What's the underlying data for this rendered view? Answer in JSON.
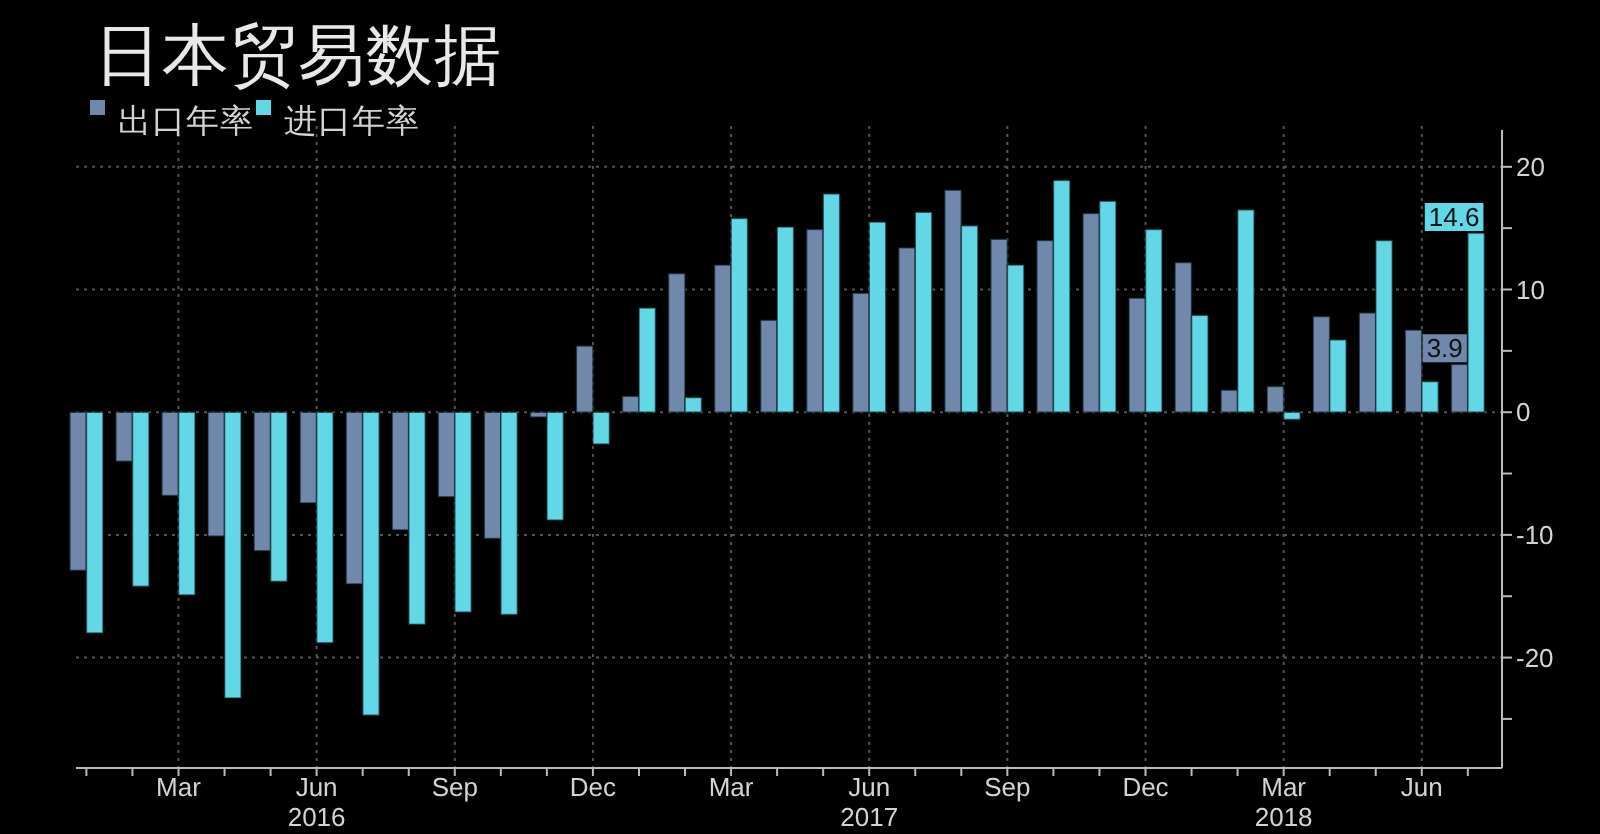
{
  "chart_data": {
    "type": "bar",
    "title": "日本贸易数据",
    "x": [
      "2016-01",
      "2016-02",
      "2016-03",
      "2016-04",
      "2016-05",
      "2016-06",
      "2016-07",
      "2016-08",
      "2016-09",
      "2016-10",
      "2016-11",
      "2016-12",
      "2017-01",
      "2017-02",
      "2017-03",
      "2017-04",
      "2017-05",
      "2017-06",
      "2017-07",
      "2017-08",
      "2017-09",
      "2017-10",
      "2017-11",
      "2017-12",
      "2018-01",
      "2018-02",
      "2018-03",
      "2018-04",
      "2018-05",
      "2018-06",
      "2018-07"
    ],
    "series": [
      {
        "name": "出口年率",
        "color": "#7088aa",
        "values": [
          -12.9,
          -4.0,
          -6.8,
          -10.1,
          -11.3,
          -7.4,
          -14.0,
          -9.6,
          -6.9,
          -10.3,
          -0.4,
          5.4,
          1.3,
          11.3,
          12.0,
          7.5,
          14.9,
          9.7,
          13.4,
          18.1,
          14.1,
          14.0,
          16.2,
          9.3,
          12.2,
          1.8,
          2.1,
          7.8,
          8.1,
          6.7,
          3.9
        ],
        "value_labels": [
          null,
          null,
          null,
          null,
          null,
          null,
          null,
          null,
          null,
          null,
          null,
          null,
          null,
          null,
          null,
          null,
          null,
          null,
          null,
          null,
          null,
          null,
          null,
          null,
          null,
          null,
          null,
          null,
          null,
          null,
          "3.9"
        ]
      },
      {
        "name": "进口年率",
        "color": "#62d8e6",
        "values": [
          -18.0,
          -14.2,
          -14.9,
          -23.3,
          -13.8,
          -18.8,
          -24.7,
          -17.3,
          -16.3,
          -16.5,
          -8.8,
          -2.6,
          8.5,
          1.2,
          15.8,
          15.1,
          17.8,
          15.5,
          16.3,
          15.2,
          12.0,
          18.9,
          17.2,
          14.9,
          7.9,
          16.5,
          -0.6,
          5.9,
          14.0,
          2.5,
          14.6
        ],
        "value_labels": [
          null,
          null,
          null,
          null,
          null,
          null,
          null,
          null,
          null,
          null,
          null,
          null,
          null,
          null,
          null,
          null,
          null,
          null,
          null,
          null,
          null,
          null,
          null,
          null,
          null,
          null,
          null,
          null,
          null,
          null,
          "14.6"
        ]
      }
    ],
    "xlim": [
      "2015-12-25",
      "2018-07-24"
    ],
    "xticks": [
      {
        "value": "2016-01",
        "label": null
      },
      {
        "value": "2016-02",
        "label": null
      },
      {
        "value": "2016-03",
        "label": "Mar"
      },
      {
        "value": "2016-04",
        "label": null
      },
      {
        "value": "2016-05",
        "label": null
      },
      {
        "value": "2016-06",
        "label": "Jun\n2016"
      },
      {
        "value": "2016-07",
        "label": null
      },
      {
        "value": "2016-08",
        "label": null
      },
      {
        "value": "2016-09",
        "label": "Sep"
      },
      {
        "value": "2016-10",
        "label": null
      },
      {
        "value": "2016-11",
        "label": null
      },
      {
        "value": "2016-12",
        "label": "Dec"
      },
      {
        "value": "2017-01",
        "label": null
      },
      {
        "value": "2017-02",
        "label": null
      },
      {
        "value": "2017-03",
        "label": "Mar"
      },
      {
        "value": "2017-04",
        "label": null
      },
      {
        "value": "2017-05",
        "label": null
      },
      {
        "value": "2017-06",
        "label": "Jun\n2017"
      },
      {
        "value": "2017-07",
        "label": null
      },
      {
        "value": "2017-08",
        "label": null
      },
      {
        "value": "2017-09",
        "label": "Sep"
      },
      {
        "value": "2017-10",
        "label": null
      },
      {
        "value": "2017-11",
        "label": null
      },
      {
        "value": "2017-12",
        "label": "Dec"
      },
      {
        "value": "2018-01",
        "label": null
      },
      {
        "value": "2018-02",
        "label": null
      },
      {
        "value": "2018-03",
        "label": "Mar\n2018"
      },
      {
        "value": "2018-04",
        "label": null
      },
      {
        "value": "2018-05",
        "label": null
      },
      {
        "value": "2018-06",
        "label": "Jun"
      },
      {
        "value": "2018-07",
        "label": null
      }
    ],
    "ylim": [
      -29,
      23
    ],
    "yticks": [
      {
        "value": -25,
        "label": null
      },
      -20,
      {
        "value": -15,
        "label": null
      },
      -10,
      {
        "value": -5,
        "label": null
      },
      0,
      {
        "value": 5,
        "label": null
      },
      10,
      {
        "value": 15,
        "label": null
      },
      20
    ],
    "grid": true,
    "legend": "top left"
  }
}
